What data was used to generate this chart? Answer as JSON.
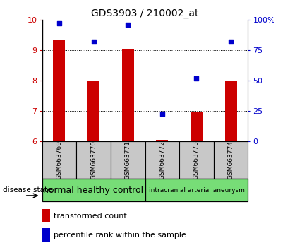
{
  "title": "GDS3903 / 210002_at",
  "samples": [
    "GSM663769",
    "GSM663770",
    "GSM663771",
    "GSM663772",
    "GSM663773",
    "GSM663774"
  ],
  "transformed_count": [
    9.35,
    7.98,
    9.02,
    6.05,
    6.98,
    7.97
  ],
  "percentile_rank": [
    97,
    82,
    96,
    23,
    52,
    82
  ],
  "ylim_left": [
    6,
    10
  ],
  "ylim_right": [
    0,
    100
  ],
  "yticks_left": [
    6,
    7,
    8,
    9,
    10
  ],
  "yticks_right": [
    0,
    25,
    50,
    75,
    100
  ],
  "ytick_labels_right": [
    "0",
    "25",
    "50",
    "75",
    "100%"
  ],
  "bar_color": "#cc0000",
  "dot_color": "#0000cc",
  "bar_width": 0.35,
  "groups": [
    {
      "label": "normal healthy control",
      "start": 0,
      "end": 2,
      "color": "#77dd77"
    },
    {
      "label": "intracranial arterial aneurysm",
      "start": 3,
      "end": 5,
      "color": "#77dd77"
    }
  ],
  "disease_state_label": "disease state",
  "legend_bar_label": "transformed count",
  "legend_dot_label": "percentile rank within the sample",
  "tick_area_color": "#c8c8c8",
  "left_tick_color": "#cc0000",
  "right_tick_color": "#0000cc",
  "title_fontsize": 10,
  "axis_fontsize": 8,
  "sample_fontsize": 6.5,
  "group_fontsize1": 9,
  "group_fontsize2": 6.5,
  "legend_fontsize": 8
}
